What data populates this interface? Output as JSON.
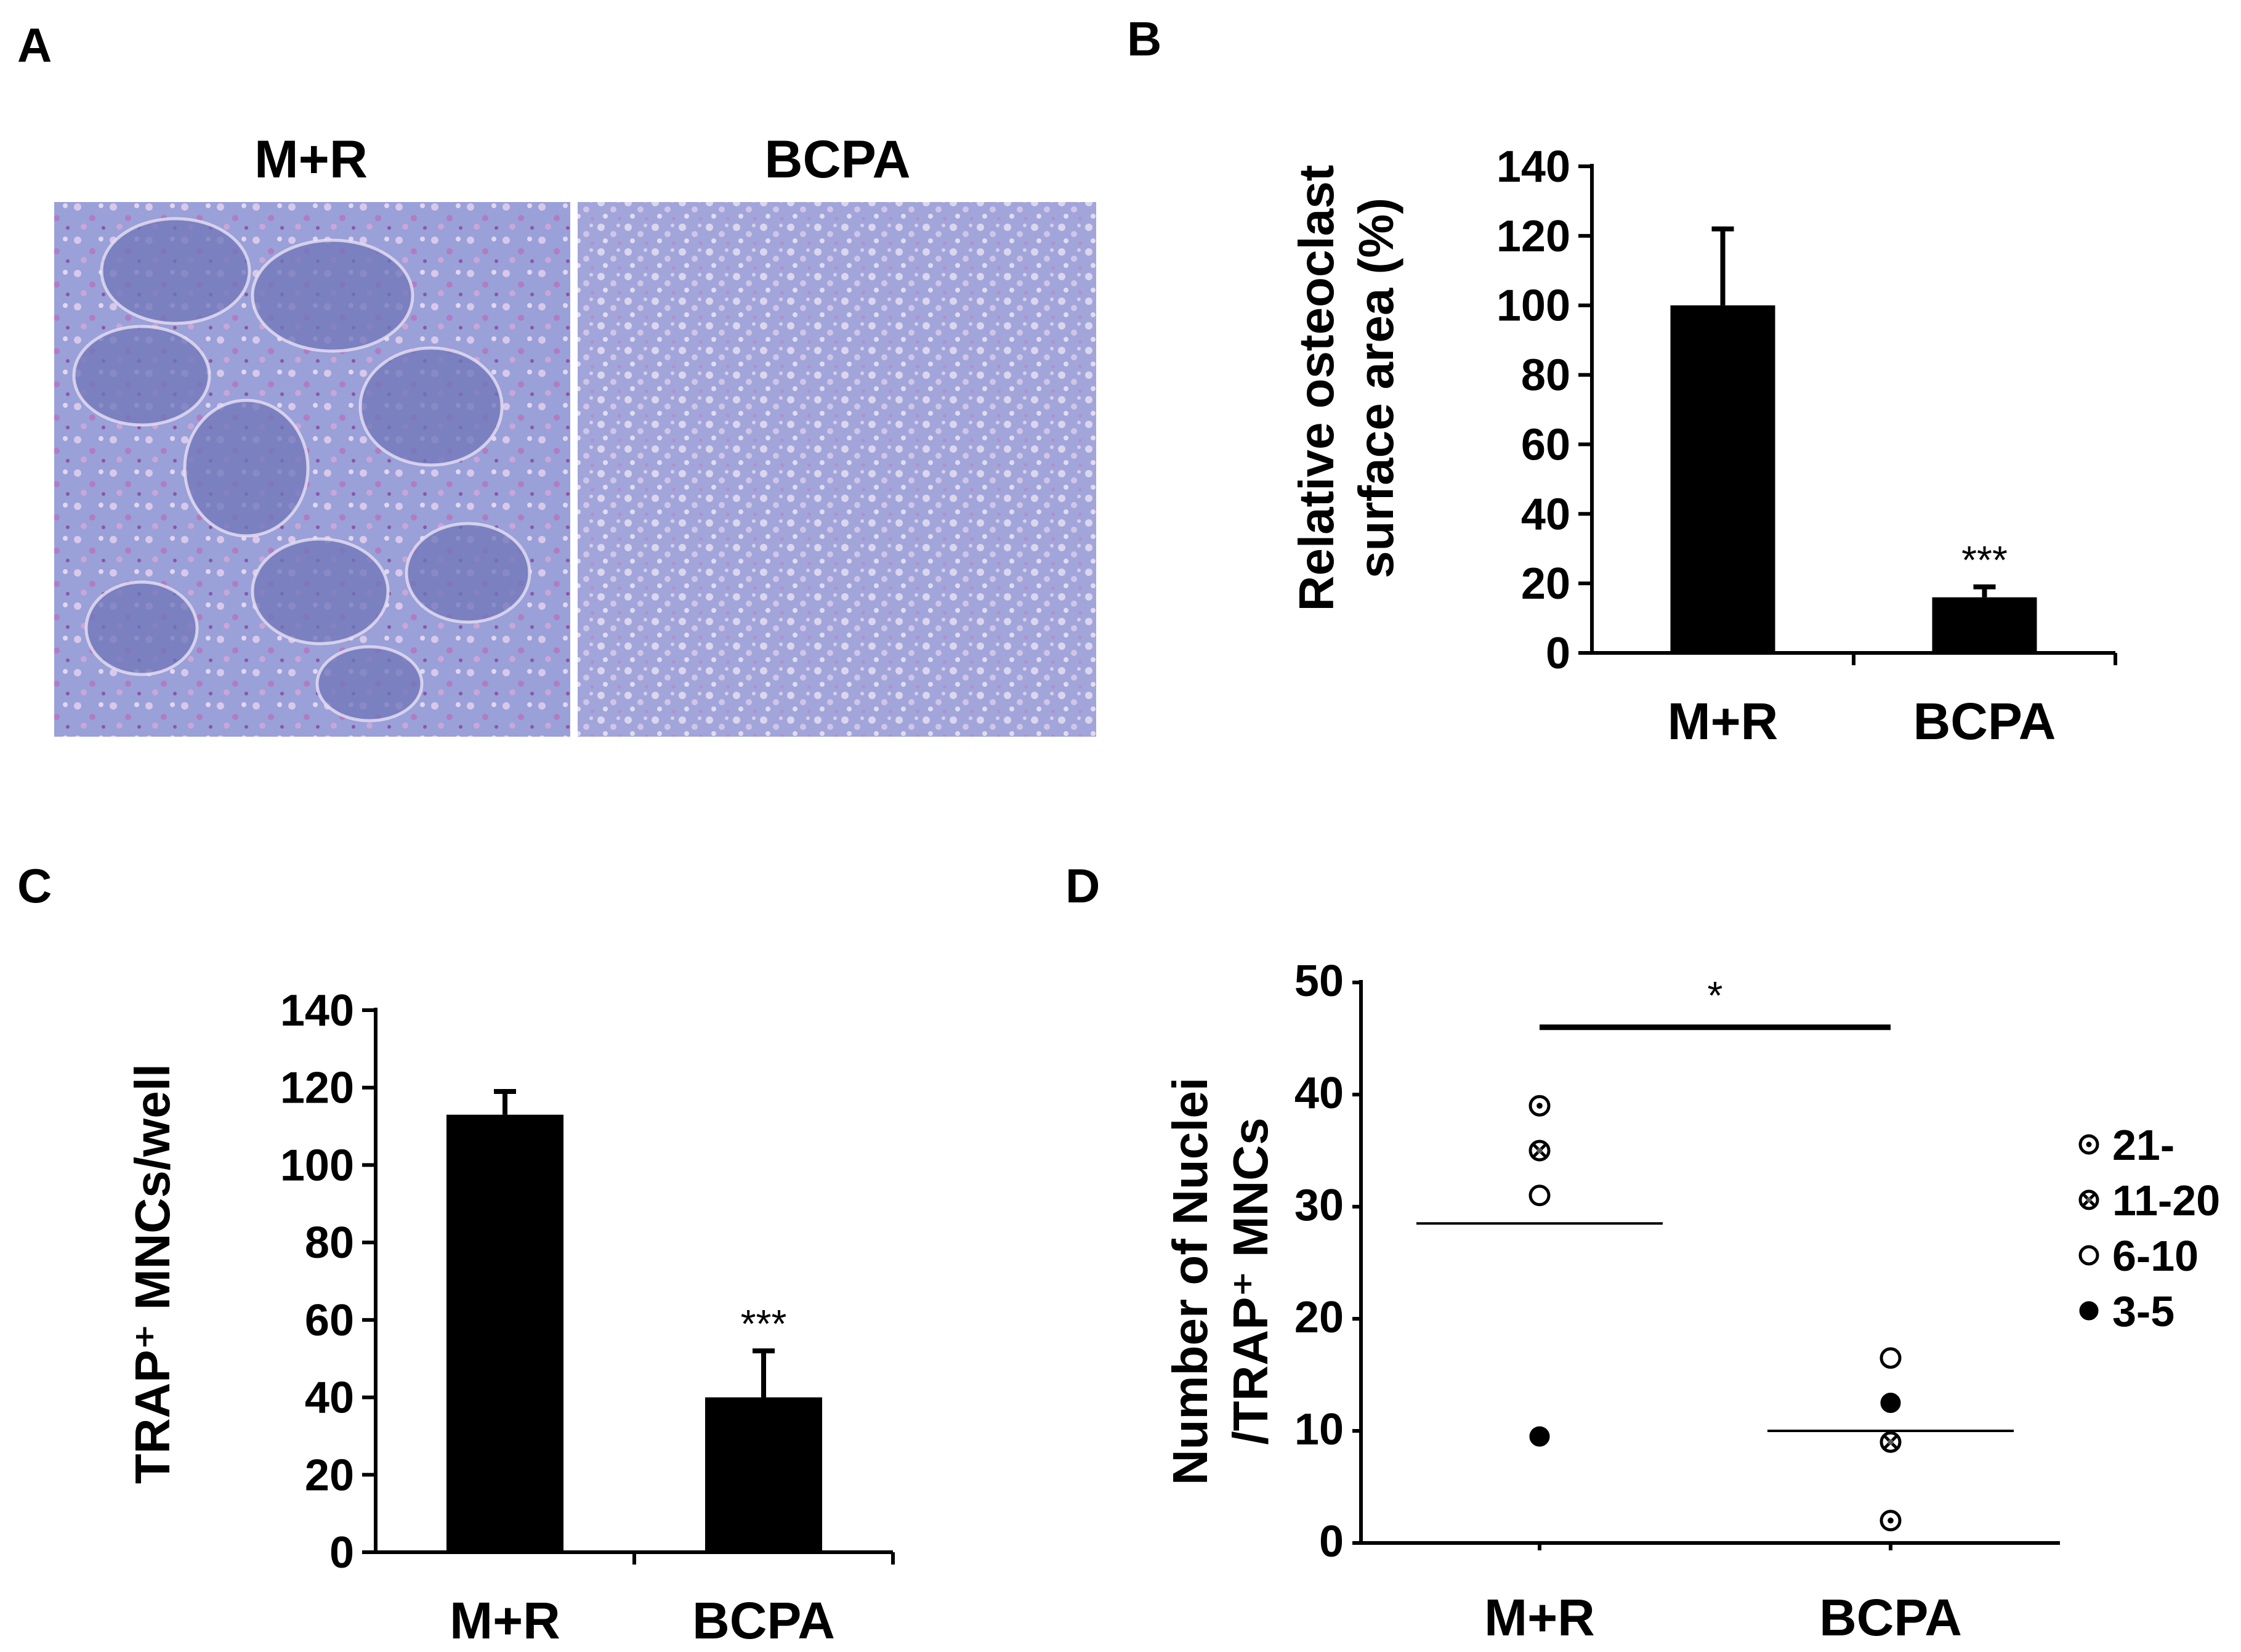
{
  "panels": {
    "A": {
      "letter": "A",
      "image_labels": [
        "M+R",
        "BCPA"
      ],
      "colors": {
        "stain_background": "#9a9fd8",
        "cells": "#b48fcf",
        "osteoclast": "#7077b8"
      }
    },
    "B": {
      "letter": "B"
    },
    "C": {
      "letter": "C"
    },
    "D": {
      "letter": "D"
    }
  },
  "chart_data": [
    {
      "panel": "B",
      "type": "bar",
      "categories": [
        "M+R",
        "BCPA"
      ],
      "values": [
        100,
        16
      ],
      "errors": [
        22,
        3
      ],
      "annotations": [
        "",
        "***"
      ],
      "ylabel_lines": [
        "Relative osteoclast",
        "surface area (%)"
      ],
      "ylim": [
        0,
        140
      ],
      "yticks": [
        0,
        20,
        40,
        60,
        80,
        100,
        120,
        140
      ],
      "bar_color": "#000000",
      "grid": false
    },
    {
      "panel": "C",
      "type": "bar",
      "categories": [
        "M+R",
        "BCPA"
      ],
      "values": [
        113,
        40
      ],
      "errors": [
        6,
        12
      ],
      "annotations": [
        "",
        "***"
      ],
      "ylabel_lines": [
        "TRAP⁺ MNCs/well"
      ],
      "ylim": [
        0,
        140
      ],
      "yticks": [
        0,
        20,
        40,
        60,
        80,
        100,
        120,
        140
      ],
      "bar_color": "#000000",
      "grid": false
    },
    {
      "panel": "D",
      "type": "scatter",
      "categories": [
        "M+R",
        "BCPA"
      ],
      "points": [
        {
          "category": "M+R",
          "y": 39,
          "group": "21-"
        },
        {
          "category": "M+R",
          "y": 35,
          "group": "11-20"
        },
        {
          "category": "M+R",
          "y": 31,
          "group": "6-10"
        },
        {
          "category": "M+R",
          "y": 9.5,
          "group": "3-5"
        },
        {
          "category": "BCPA",
          "y": 16.5,
          "group": "6-10"
        },
        {
          "category": "BCPA",
          "y": 12.5,
          "group": "3-5"
        },
        {
          "category": "BCPA",
          "y": 9,
          "group": "11-20"
        },
        {
          "category": "BCPA",
          "y": 2,
          "group": "21-"
        }
      ],
      "means": [
        28.5,
        10
      ],
      "significance": "*",
      "legend": [
        {
          "label": "21-",
          "marker": "dotted-circle"
        },
        {
          "label": "11-20",
          "marker": "crossed-circle"
        },
        {
          "label": "6-10",
          "marker": "open-circle"
        },
        {
          "label": "3-5",
          "marker": "filled-circle"
        }
      ],
      "legend_position": "right",
      "ylabel_lines": [
        "Number of Nuclei",
        "/TRAP⁺ MNCs"
      ],
      "ylim": [
        0,
        50
      ],
      "yticks": [
        0,
        10,
        20,
        30,
        40,
        50
      ],
      "grid": false
    }
  ]
}
